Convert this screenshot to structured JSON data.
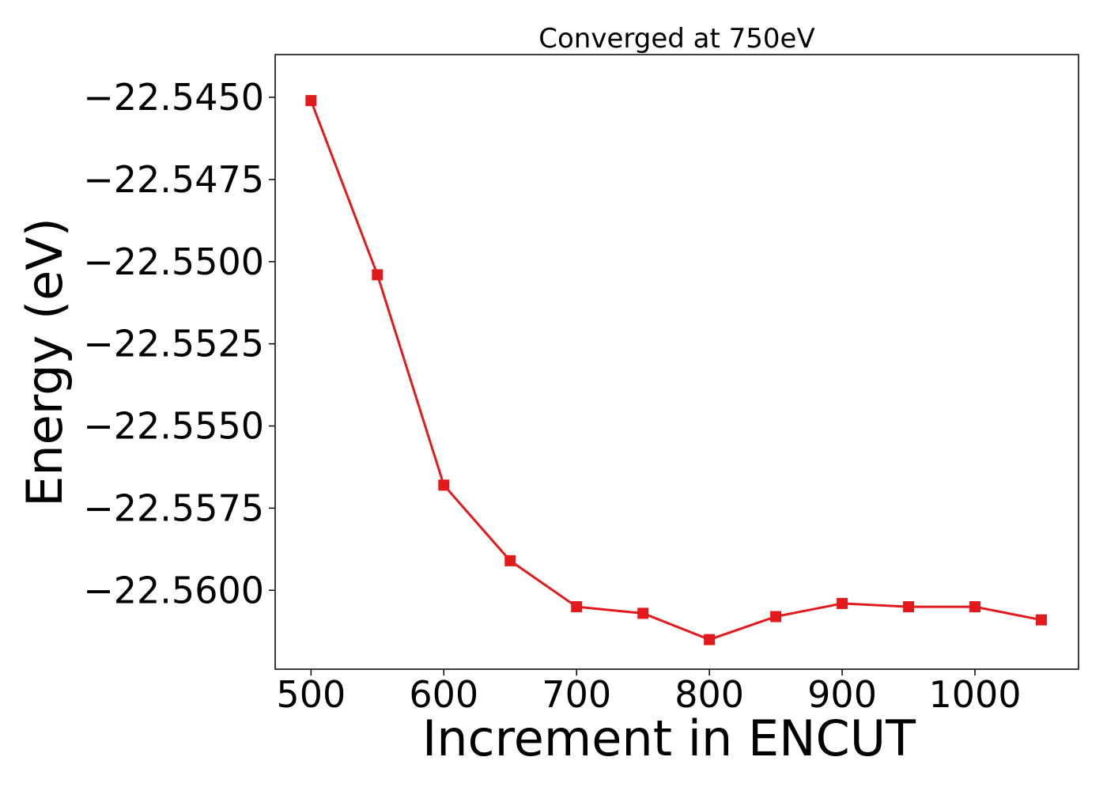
{
  "chart_data": {
    "type": "line",
    "title": "Converged at 750eV",
    "xlabel": "Increment in ENCUT",
    "ylabel": "Energy (eV)",
    "xlim": [
      473,
      1078
    ],
    "ylim": [
      -22.5624,
      -22.5437
    ],
    "xticks": [
      500,
      600,
      700,
      800,
      900,
      1000
    ],
    "xtick_labels": [
      "500",
      "600",
      "700",
      "800",
      "900",
      "1000"
    ],
    "yticks": [
      -22.545,
      -22.5475,
      -22.55,
      -22.5525,
      -22.555,
      -22.5575,
      -22.56
    ],
    "ytick_labels": [
      "−22.5450",
      "−22.5475",
      "−22.5500",
      "−22.5525",
      "−22.5550",
      "−22.5575",
      "−22.5600"
    ],
    "grid": false,
    "marker": "square",
    "color": "#e31a1c",
    "series": [
      {
        "x": [
          500,
          550,
          600,
          650,
          700,
          750,
          800,
          850,
          900,
          950,
          1000,
          1050
        ],
        "y": [
          -22.5451,
          -22.5504,
          -22.5568,
          -22.5591,
          -22.5605,
          -22.5607,
          -22.5615,
          -22.5608,
          -22.5604,
          -22.5605,
          -22.5605,
          -22.5609
        ]
      }
    ]
  }
}
